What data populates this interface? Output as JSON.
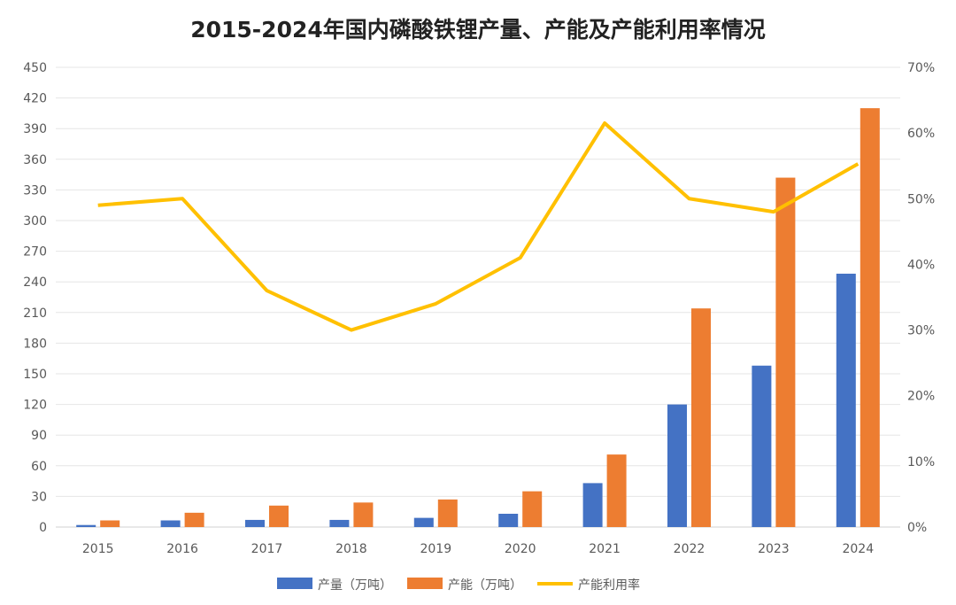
{
  "chart_data": {
    "type": "bar+line",
    "title": "2015-2024年国内磷酸铁锂产量、产能及产能利用率情况",
    "categories": [
      "2015",
      "2016",
      "2017",
      "2018",
      "2019",
      "2020",
      "2021",
      "2022",
      "2023",
      "2024"
    ],
    "series": [
      {
        "name": "产量（万吨）",
        "type": "bar",
        "axis": "left",
        "color": "#4472C4",
        "values": [
          2,
          6.5,
          7,
          7,
          9,
          13,
          43,
          120,
          158,
          248
        ]
      },
      {
        "name": "产能（万吨）",
        "type": "bar",
        "axis": "left",
        "color": "#ED7D31",
        "values": [
          6.5,
          14,
          21,
          24,
          27,
          35,
          71,
          214,
          342,
          410
        ]
      },
      {
        "name": "产能利用率",
        "type": "line",
        "axis": "right",
        "color": "#FFC000",
        "values": [
          49,
          50,
          36,
          30,
          34,
          41,
          61.5,
          50,
          48,
          55.3
        ]
      }
    ],
    "left_axis": {
      "range": [
        0,
        450
      ],
      "ticks": [
        "0",
        "30",
        "60",
        "90",
        "120",
        "150",
        "180",
        "210",
        "240",
        "270",
        "300",
        "330",
        "360",
        "390",
        "420",
        "450"
      ]
    },
    "right_axis": {
      "range": [
        0,
        70
      ],
      "unit": "%",
      "ticks": [
        "0%",
        "10%",
        "20%",
        "30%",
        "40%",
        "50%",
        "60%",
        "70%"
      ]
    },
    "grid": true,
    "legend": "bottom"
  }
}
